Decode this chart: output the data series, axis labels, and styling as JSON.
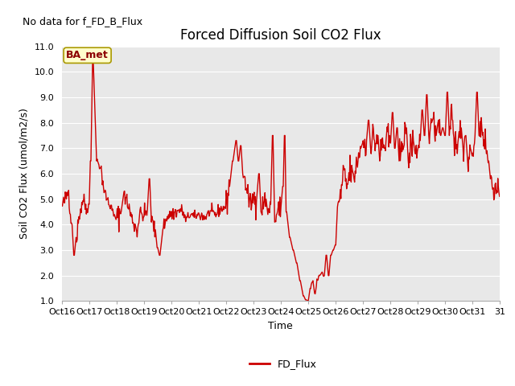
{
  "title": "Forced Diffusion Soil CO2 Flux",
  "xlabel": "Time",
  "ylabel": "Soil CO2 Flux (umol/m2/s)",
  "no_data_text": "No data for f_FD_B_Flux",
  "legend_label": "FD_Flux",
  "ba_met_label": "BA_met",
  "line_color": "#cc0000",
  "legend_line_color": "#cc0000",
  "ba_met_bg": "#ffffcc",
  "ba_met_border": "#aa9900",
  "ba_met_text_color": "#8b0000",
  "ylim": [
    1.0,
    11.0
  ],
  "yticks": [
    1.0,
    2.0,
    3.0,
    4.0,
    5.0,
    6.0,
    7.0,
    8.0,
    9.0,
    10.0,
    11.0
  ],
  "bg_color": "#e8e8e8",
  "fig_bg_color": "#ffffff",
  "grid_color": "#ffffff",
  "xtick_labels": [
    "Oct 16",
    "Oct 17",
    "Oct 18",
    "Oct 19",
    "Oct 20",
    "Oct 21",
    "Oct 22",
    "Oct 23",
    "Oct 24",
    "Oct 25",
    "Oct 26",
    "Oct 27",
    "Oct 28",
    "Oct 29",
    "Oct 30",
    "Oct 31"
  ],
  "title_fontsize": 12,
  "axis_label_fontsize": 9,
  "tick_fontsize": 8,
  "linewidth": 1.0,
  "no_data_fontsize": 9,
  "ba_met_fontsize": 9,
  "legend_fontsize": 9
}
